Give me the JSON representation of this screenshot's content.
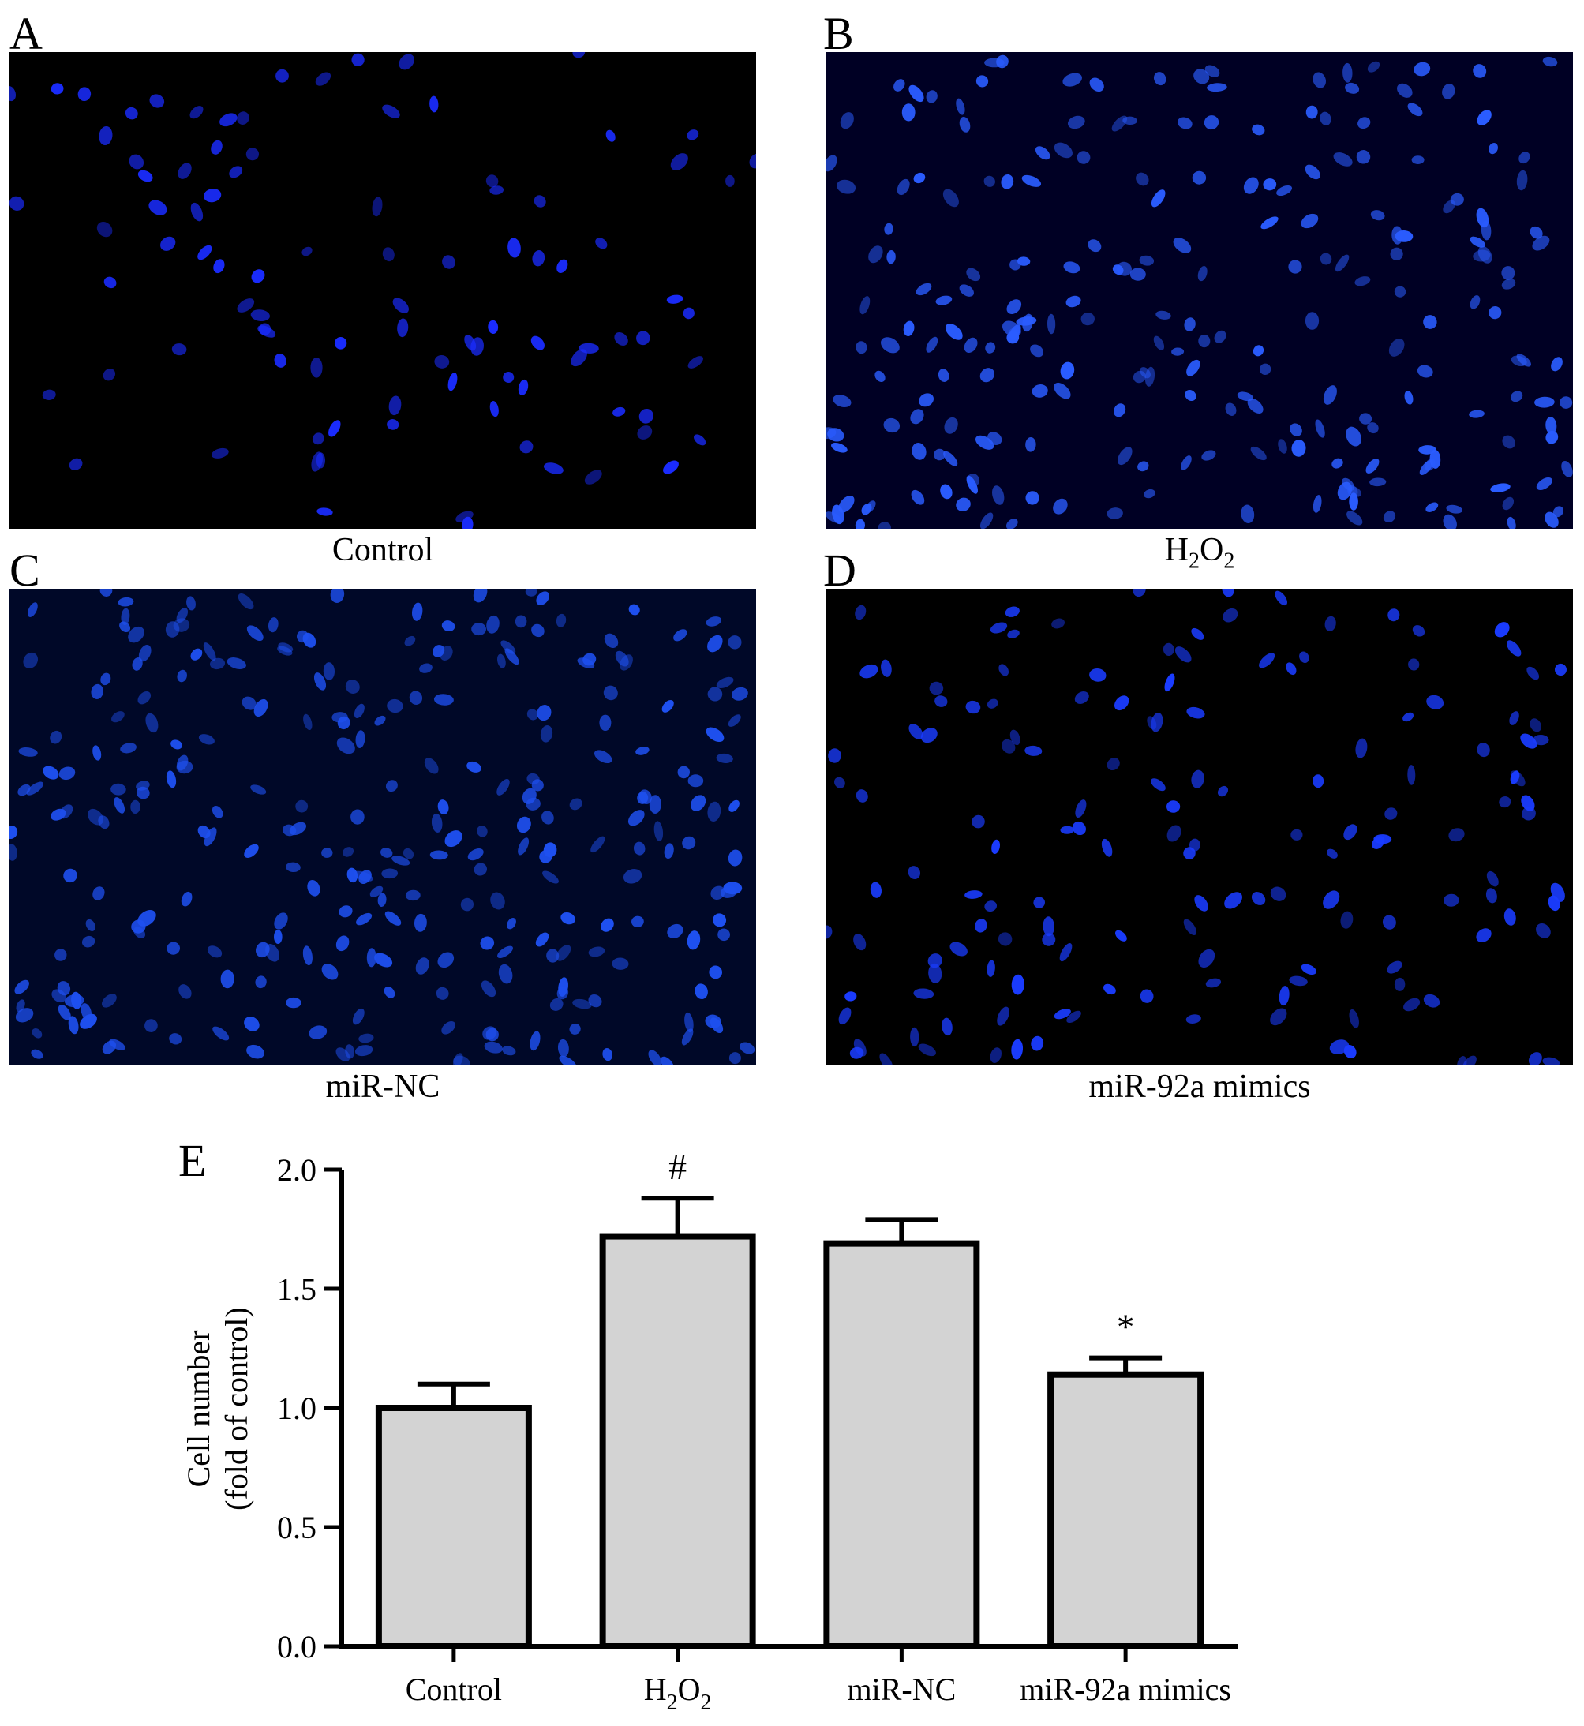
{
  "panels": [
    {
      "letter": "A",
      "caption": "Control",
      "caption_sub": "",
      "bg": "#000000",
      "nucleus_color": "#1a2cff"
    },
    {
      "letter": "B",
      "caption": "H",
      "caption_sub": "2",
      "caption_2": "O",
      "caption_sub_2": "2",
      "bg": "#000024",
      "nucleus_color": "#2a5cff"
    },
    {
      "letter": "C",
      "caption": "miR-NC",
      "caption_sub": "",
      "bg": "#000828",
      "nucleus_color": "#1e50f0"
    },
    {
      "letter": "D",
      "caption": "miR-92a mimics",
      "caption_sub": "",
      "bg": "#000000",
      "nucleus_color": "#1a3cff"
    }
  ],
  "chart_letter": "E",
  "chart_data": {
    "type": "bar",
    "categories": [
      "Control",
      "H2O2",
      "miR-NC",
      "miR-92a mimics"
    ],
    "category_labels": [
      {
        "main": "Control",
        "sub": "",
        "main2": "",
        "sub2": ""
      },
      {
        "main": "H",
        "sub": "2",
        "main2": "O",
        "sub2": "2"
      },
      {
        "main": "miR-NC",
        "sub": "",
        "main2": "",
        "sub2": ""
      },
      {
        "main": "miR-92a mimics",
        "sub": "",
        "main2": "",
        "sub2": ""
      }
    ],
    "values": [
      1.0,
      1.72,
      1.69,
      1.14
    ],
    "errors": [
      0.1,
      0.16,
      0.1,
      0.07
    ],
    "annotations": [
      "",
      "#",
      "",
      "*"
    ],
    "ylabel_line1": "Cell number",
    "ylabel_line2": "(fold of control)",
    "ylim": [
      0,
      2.0
    ],
    "yticks": [
      "0.0",
      "0.5",
      "1.0",
      "1.5",
      "2.0"
    ],
    "ytick_values": [
      0,
      0.5,
      1.0,
      1.5,
      2.0
    ],
    "bar_color": "#d3d3d3",
    "edge_color": "#000000"
  }
}
